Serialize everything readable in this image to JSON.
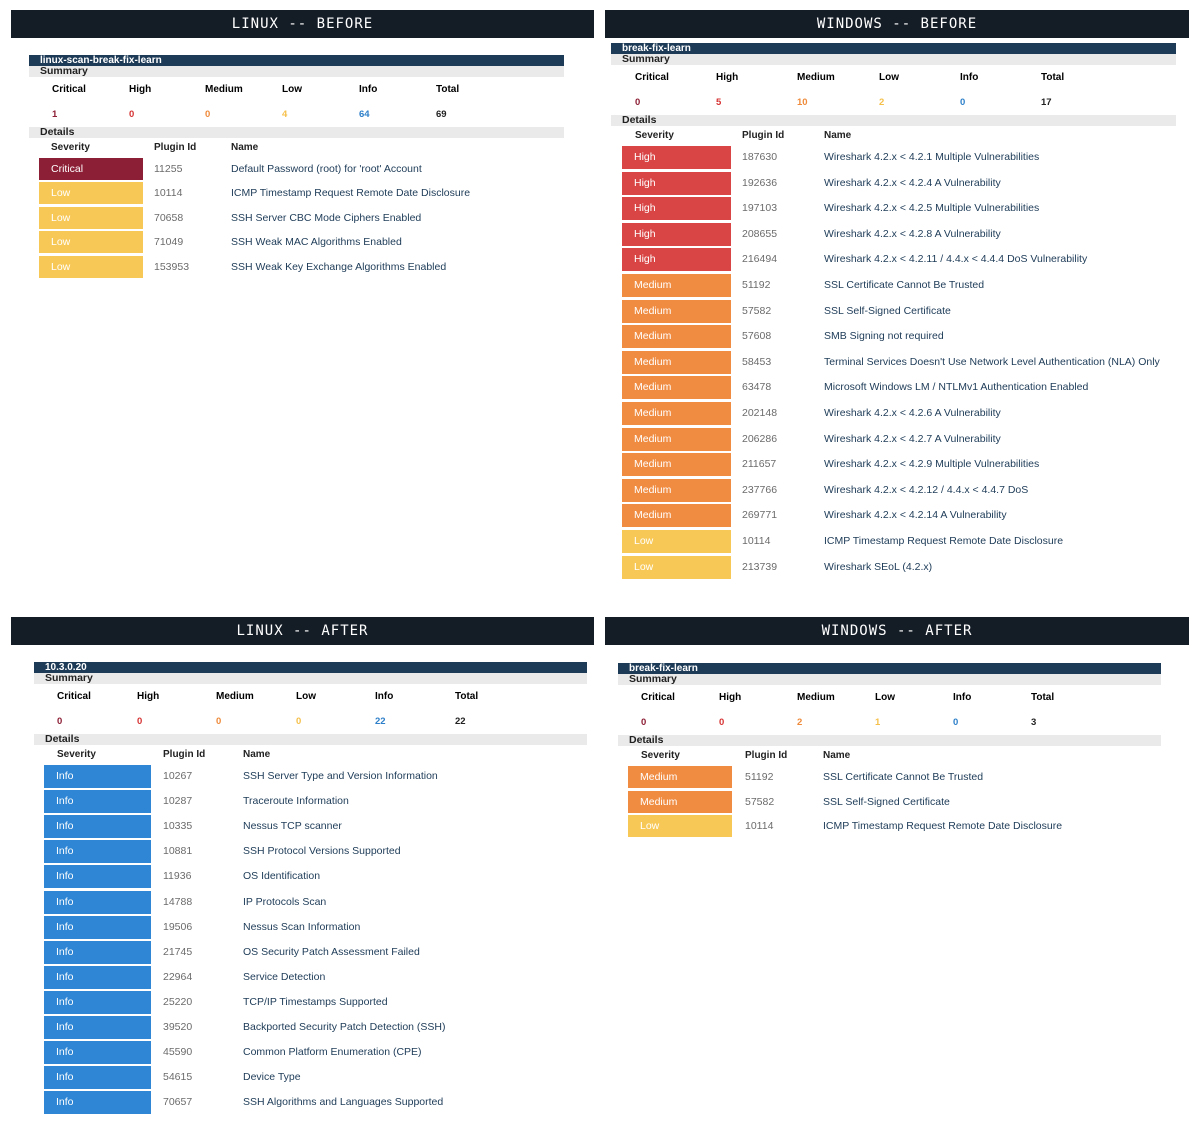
{
  "colors": {
    "critical": "#8c1e35",
    "high": "#d94545",
    "medium": "#f08c42",
    "low": "#f7c856",
    "info": "#2e86d4",
    "header_bg": "#141c26",
    "host_bar": "#1d3b57"
  },
  "labels": {
    "summary": "Summary",
    "details": "Details",
    "critical": "Critical",
    "high": "High",
    "medium": "Medium",
    "low": "Low",
    "info": "Info",
    "total": "Total",
    "severity": "Severity",
    "plugin_id": "Plugin Id",
    "name": "Name"
  },
  "panels": [
    {
      "title": "LINUX -- BEFORE",
      "host": "linux-scan-break-fix-learn",
      "summary": {
        "critical": "1",
        "high": "0",
        "medium": "0",
        "low": "4",
        "info": "64",
        "total": "69"
      },
      "findings": [
        {
          "severity": "Critical",
          "plugin_id": "11255",
          "name": "Default Password (root) for 'root' Account"
        },
        {
          "severity": "Low",
          "plugin_id": "10114",
          "name": "ICMP Timestamp Request Remote Date Disclosure"
        },
        {
          "severity": "Low",
          "plugin_id": "70658",
          "name": "SSH Server CBC Mode Ciphers Enabled"
        },
        {
          "severity": "Low",
          "plugin_id": "71049",
          "name": "SSH Weak MAC Algorithms Enabled"
        },
        {
          "severity": "Low",
          "plugin_id": "153953",
          "name": "SSH Weak Key Exchange Algorithms Enabled"
        }
      ]
    },
    {
      "title": "WINDOWS -- BEFORE",
      "host": "break-fix-learn",
      "summary": {
        "critical": "0",
        "high": "5",
        "medium": "10",
        "low": "2",
        "info": "0",
        "total": "17"
      },
      "findings": [
        {
          "severity": "High",
          "plugin_id": "187630",
          "name": "Wireshark 4.2.x < 4.2.1 Multiple Vulnerabilities"
        },
        {
          "severity": "High",
          "plugin_id": "192636",
          "name": "Wireshark 4.2.x < 4.2.4 A Vulnerability"
        },
        {
          "severity": "High",
          "plugin_id": "197103",
          "name": "Wireshark 4.2.x < 4.2.5 Multiple Vulnerabilities"
        },
        {
          "severity": "High",
          "plugin_id": "208655",
          "name": "Wireshark 4.2.x < 4.2.8 A Vulnerability"
        },
        {
          "severity": "High",
          "plugin_id": "216494",
          "name": "Wireshark 4.2.x < 4.2.11 / 4.4.x < 4.4.4 DoS Vulnerability"
        },
        {
          "severity": "Medium",
          "plugin_id": "51192",
          "name": "SSL Certificate Cannot Be Trusted"
        },
        {
          "severity": "Medium",
          "plugin_id": "57582",
          "name": "SSL Self-Signed Certificate"
        },
        {
          "severity": "Medium",
          "plugin_id": "57608",
          "name": "SMB Signing not required"
        },
        {
          "severity": "Medium",
          "plugin_id": "58453",
          "name": "Terminal Services Doesn't Use Network Level Authentication (NLA) Only"
        },
        {
          "severity": "Medium",
          "plugin_id": "63478",
          "name": "Microsoft Windows LM / NTLMv1 Authentication Enabled"
        },
        {
          "severity": "Medium",
          "plugin_id": "202148",
          "name": "Wireshark 4.2.x < 4.2.6 A Vulnerability"
        },
        {
          "severity": "Medium",
          "plugin_id": "206286",
          "name": "Wireshark 4.2.x < 4.2.7 A Vulnerability"
        },
        {
          "severity": "Medium",
          "plugin_id": "211657",
          "name": "Wireshark 4.2.x < 4.2.9 Multiple Vulnerabilities"
        },
        {
          "severity": "Medium",
          "plugin_id": "237766",
          "name": "Wireshark 4.2.x < 4.2.12 / 4.4.x < 4.4.7 DoS"
        },
        {
          "severity": "Medium",
          "plugin_id": "269771",
          "name": "Wireshark 4.2.x < 4.2.14 A Vulnerability"
        },
        {
          "severity": "Low",
          "plugin_id": "10114",
          "name": "ICMP Timestamp Request Remote Date Disclosure"
        },
        {
          "severity": "Low",
          "plugin_id": "213739",
          "name": "Wireshark SEoL (4.2.x)"
        }
      ]
    },
    {
      "title": "LINUX -- AFTER",
      "host": "10.3.0.20",
      "summary": {
        "critical": "0",
        "high": "0",
        "medium": "0",
        "low": "0",
        "info": "22",
        "total": "22"
      },
      "findings": [
        {
          "severity": "Info",
          "plugin_id": "10267",
          "name": "SSH Server Type and Version Information"
        },
        {
          "severity": "Info",
          "plugin_id": "10287",
          "name": "Traceroute Information"
        },
        {
          "severity": "Info",
          "plugin_id": "10335",
          "name": "Nessus TCP scanner"
        },
        {
          "severity": "Info",
          "plugin_id": "10881",
          "name": "SSH Protocol Versions Supported"
        },
        {
          "severity": "Info",
          "plugin_id": "11936",
          "name": "OS Identification"
        },
        {
          "severity": "Info",
          "plugin_id": "14788",
          "name": "IP Protocols Scan"
        },
        {
          "severity": "Info",
          "plugin_id": "19506",
          "name": "Nessus Scan Information"
        },
        {
          "severity": "Info",
          "plugin_id": "21745",
          "name": "OS Security Patch Assessment Failed"
        },
        {
          "severity": "Info",
          "plugin_id": "22964",
          "name": "Service Detection"
        },
        {
          "severity": "Info",
          "plugin_id": "25220",
          "name": "TCP/IP Timestamps Supported"
        },
        {
          "severity": "Info",
          "plugin_id": "39520",
          "name": "Backported Security Patch Detection (SSH)"
        },
        {
          "severity": "Info",
          "plugin_id": "45590",
          "name": "Common Platform Enumeration (CPE)"
        },
        {
          "severity": "Info",
          "plugin_id": "54615",
          "name": "Device Type"
        },
        {
          "severity": "Info",
          "plugin_id": "70657",
          "name": "SSH Algorithms and Languages Supported"
        }
      ]
    },
    {
      "title": "WINDOWS -- AFTER",
      "host": "break-fix-learn",
      "summary": {
        "critical": "0",
        "high": "0",
        "medium": "2",
        "low": "1",
        "info": "0",
        "total": "3"
      },
      "findings": [
        {
          "severity": "Medium",
          "plugin_id": "51192",
          "name": "SSL Certificate Cannot Be Trusted"
        },
        {
          "severity": "Medium",
          "plugin_id": "57582",
          "name": "SSL Self-Signed Certificate"
        },
        {
          "severity": "Low",
          "plugin_id": "10114",
          "name": "ICMP Timestamp Request Remote Date Disclosure"
        }
      ]
    }
  ]
}
